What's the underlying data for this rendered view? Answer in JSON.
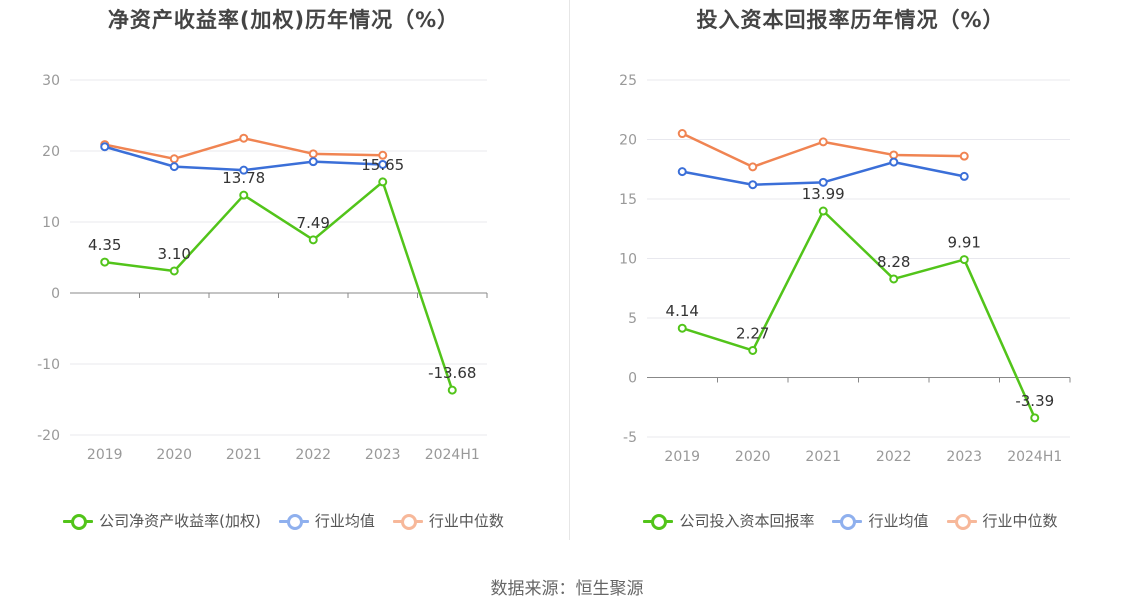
{
  "source_text": "数据来源：恒生聚源",
  "chart_data": [
    {
      "type": "line",
      "title": "净资产收益率(加权)历年情况（%）",
      "categories": [
        "2019",
        "2020",
        "2021",
        "2022",
        "2023",
        "2024H1"
      ],
      "ylim": [
        -20,
        30
      ],
      "yticks": [
        -20,
        -10,
        0,
        10,
        20,
        30
      ],
      "grid": true,
      "legend_position": "bottom",
      "series": [
        {
          "name": "公司净资产收益率(加权)",
          "color": "#52c41a",
          "values": [
            4.35,
            3.1,
            13.78,
            7.49,
            15.65,
            -13.68
          ],
          "labels": [
            "4.35",
            "3.10",
            "13.78",
            "7.49",
            "15.65",
            "-13.68"
          ]
        },
        {
          "name": "行业均值",
          "color": "#3b6fd8",
          "legend_color": "#8fb0ee",
          "values": [
            20.6,
            17.8,
            17.3,
            18.5,
            18.1,
            null
          ]
        },
        {
          "name": "行业中位数",
          "color": "#f08452",
          "legend_color": "#f7b89a",
          "values": [
            20.9,
            18.9,
            21.8,
            19.6,
            19.4,
            null
          ]
        }
      ]
    },
    {
      "type": "line",
      "title": "投入资本回报率历年情况（%）",
      "categories": [
        "2019",
        "2020",
        "2021",
        "2022",
        "2023",
        "2024H1"
      ],
      "ylim": [
        -5,
        25
      ],
      "yticks": [
        -5,
        0,
        5,
        10,
        15,
        20,
        25
      ],
      "grid": true,
      "legend_position": "bottom",
      "series": [
        {
          "name": "公司投入资本回报率",
          "color": "#52c41a",
          "values": [
            4.14,
            2.27,
            13.99,
            8.28,
            9.91,
            -3.39
          ],
          "labels": [
            "4.14",
            "2.27",
            "13.99",
            "8.28",
            "9.91",
            "-3.39"
          ]
        },
        {
          "name": "行业均值",
          "color": "#3b6fd8",
          "legend_color": "#8fb0ee",
          "values": [
            17.3,
            16.2,
            16.4,
            18.1,
            16.9,
            null
          ]
        },
        {
          "name": "行业中位数",
          "color": "#f08452",
          "legend_color": "#f7b89a",
          "values": [
            20.5,
            17.7,
            19.8,
            18.7,
            18.6,
            null
          ]
        }
      ]
    }
  ]
}
